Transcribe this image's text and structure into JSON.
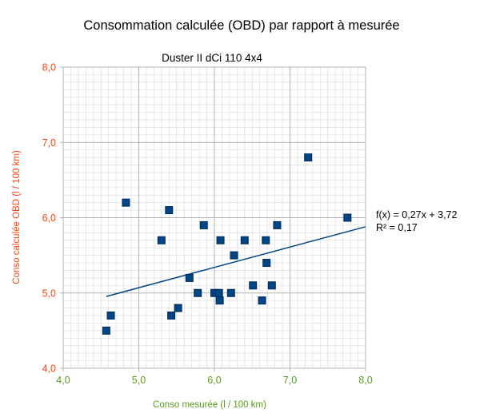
{
  "chart_data": {
    "type": "scatter",
    "title": "Consommation calculée (OBD) par rapport à mesurée",
    "subtitle": "Duster II dCi 110 4x4",
    "xlabel": "Conso mesurée (l / 100 km)",
    "ylabel": "Conso calculée OBD (l / 100 km)",
    "xlim": [
      4.0,
      8.0
    ],
    "ylim": [
      4.0,
      8.0
    ],
    "x_ticks": [
      "4,0",
      "5,0",
      "6,0",
      "7,0",
      "8,0"
    ],
    "y_ticks": [
      "4,0",
      "5,0",
      "6,0",
      "7,0",
      "8,0"
    ],
    "grid": true,
    "x": [
      4.57,
      4.63,
      4.83,
      5.3,
      5.4,
      5.43,
      5.52,
      5.67,
      5.78,
      5.86,
      6.0,
      6.06,
      6.07,
      6.08,
      6.22,
      6.26,
      6.4,
      6.51,
      6.63,
      6.68,
      6.69,
      6.76,
      6.83,
      7.24,
      7.76
    ],
    "y": [
      4.5,
      4.7,
      6.2,
      5.7,
      6.1,
      4.7,
      4.8,
      5.2,
      5.0,
      5.9,
      5.0,
      5.0,
      4.9,
      5.7,
      5.0,
      5.5,
      5.7,
      5.1,
      4.9,
      5.7,
      5.4,
      5.1,
      5.9,
      6.8,
      6.0
    ],
    "trendline": {
      "slope": 0.27,
      "intercept": 3.72,
      "equation": "f(x) = 0,27x + 3,72",
      "r_squared": "R² = 0,17"
    },
    "colors": {
      "points": "#004586",
      "trend": "#004586",
      "y_axis_text": "#ff420e",
      "x_axis_text": "#579d1c",
      "major_grid": "#b3b3b3",
      "minor_grid": "#dddddd"
    }
  }
}
